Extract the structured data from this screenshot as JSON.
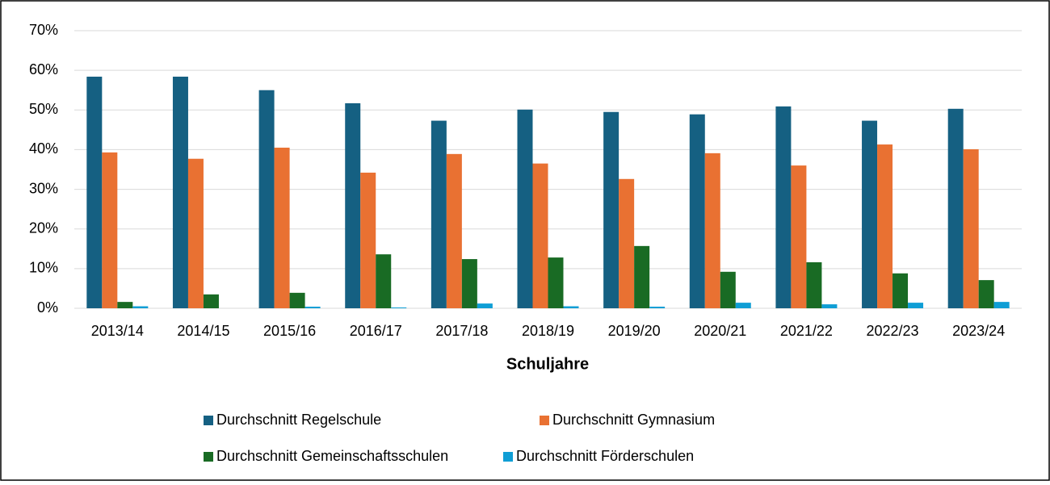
{
  "chart_data": {
    "type": "bar",
    "x_label": "Schuljahre",
    "categories": [
      "2013/14",
      "2014/15",
      "2015/16",
      "2016/17",
      "2017/18",
      "2018/19",
      "2019/20",
      "2020/21",
      "2021/22",
      "2022/23",
      "2023/24"
    ],
    "series": [
      {
        "name": "Durchschnitt Regelschule",
        "color": "#156082",
        "values": [
          58.4,
          58.4,
          55.0,
          51.7,
          47.3,
          50.1,
          49.5,
          48.9,
          50.9,
          47.3,
          50.3
        ]
      },
      {
        "name": "Durchschnitt Gymnasium",
        "color": "#e97132",
        "values": [
          39.3,
          37.7,
          40.5,
          34.2,
          38.9,
          36.5,
          32.6,
          39.1,
          36.0,
          41.3,
          40.1
        ]
      },
      {
        "name": "Durchschnitt Gemeinschaftsschulen",
        "color": "#196b24",
        "values": [
          1.6,
          3.5,
          3.9,
          13.6,
          12.4,
          12.8,
          15.7,
          9.2,
          11.6,
          8.8,
          7.1
        ]
      },
      {
        "name": "Durchschnitt Förderschulen",
        "color": "#0f9ed5",
        "values": [
          0.5,
          0,
          0.4,
          0.2,
          1.2,
          0.5,
          0.4,
          1.4,
          1.0,
          1.4,
          1.6
        ]
      }
    ],
    "ylim": [
      0,
      70
    ],
    "yticks": [
      {
        "value": 0,
        "label": "0%"
      },
      {
        "value": 10,
        "label": "10%"
      },
      {
        "value": 20,
        "label": "20%"
      },
      {
        "value": 30,
        "label": "30%"
      },
      {
        "value": 40,
        "label": "40%"
      },
      {
        "value": 50,
        "label": "50%"
      },
      {
        "value": 60,
        "label": "60%"
      },
      {
        "value": 70,
        "label": "70%"
      }
    ],
    "grid": true,
    "legend": "bottom"
  }
}
